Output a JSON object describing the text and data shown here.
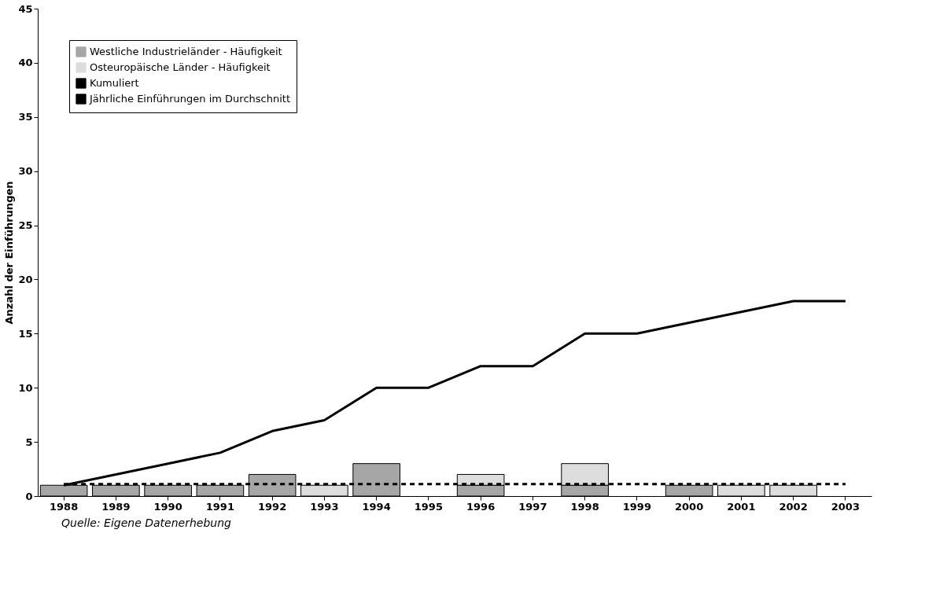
{
  "chart_data": {
    "type": "bar",
    "stacked": true,
    "categories": [
      "1988",
      "1989",
      "1990",
      "1991",
      "1992",
      "1993",
      "1994",
      "1995",
      "1996",
      "1997",
      "1998",
      "1999",
      "2000",
      "2001",
      "2002",
      "2003"
    ],
    "series": [
      {
        "name": "Westliche Industrieländer - Häufigkeit",
        "color": "#a6a6a6",
        "values": [
          1,
          1,
          1,
          1,
          2,
          0,
          3,
          0,
          1,
          0,
          1,
          0,
          1,
          0,
          0,
          0
        ]
      },
      {
        "name": "Osteuropäische Länder - Häufigkeit",
        "color": "#dddddd",
        "values": [
          0,
          0,
          0,
          0,
          0,
          1,
          0,
          0,
          1,
          0,
          2,
          0,
          0,
          1,
          1,
          0
        ]
      },
      {
        "name": "Kumuliert",
        "type": "line",
        "color": "#000000",
        "line_style": "solid",
        "values": [
          1,
          2,
          3,
          4,
          6,
          7,
          10,
          10,
          12,
          12,
          15,
          15,
          16,
          17,
          18,
          18
        ]
      },
      {
        "name": "Jährliche Einführungen im Durchschnitt",
        "type": "line",
        "color": "#000000",
        "line_style": "dashed",
        "values": [
          1.1,
          1.1,
          1.1,
          1.1,
          1.1,
          1.1,
          1.1,
          1.1,
          1.1,
          1.1,
          1.1,
          1.1,
          1.1,
          1.1,
          1.1,
          1.1
        ]
      }
    ],
    "ylabel": "Anzahl der Einführungen",
    "ylim": [
      0,
      45
    ],
    "yticks": [
      0,
      5,
      10,
      15,
      20,
      25,
      30,
      35,
      40,
      45
    ],
    "grid": false,
    "legend": "top left",
    "marker": "none",
    "annotations": [
      "Quelle: Eigene Datenerhebung"
    ]
  }
}
